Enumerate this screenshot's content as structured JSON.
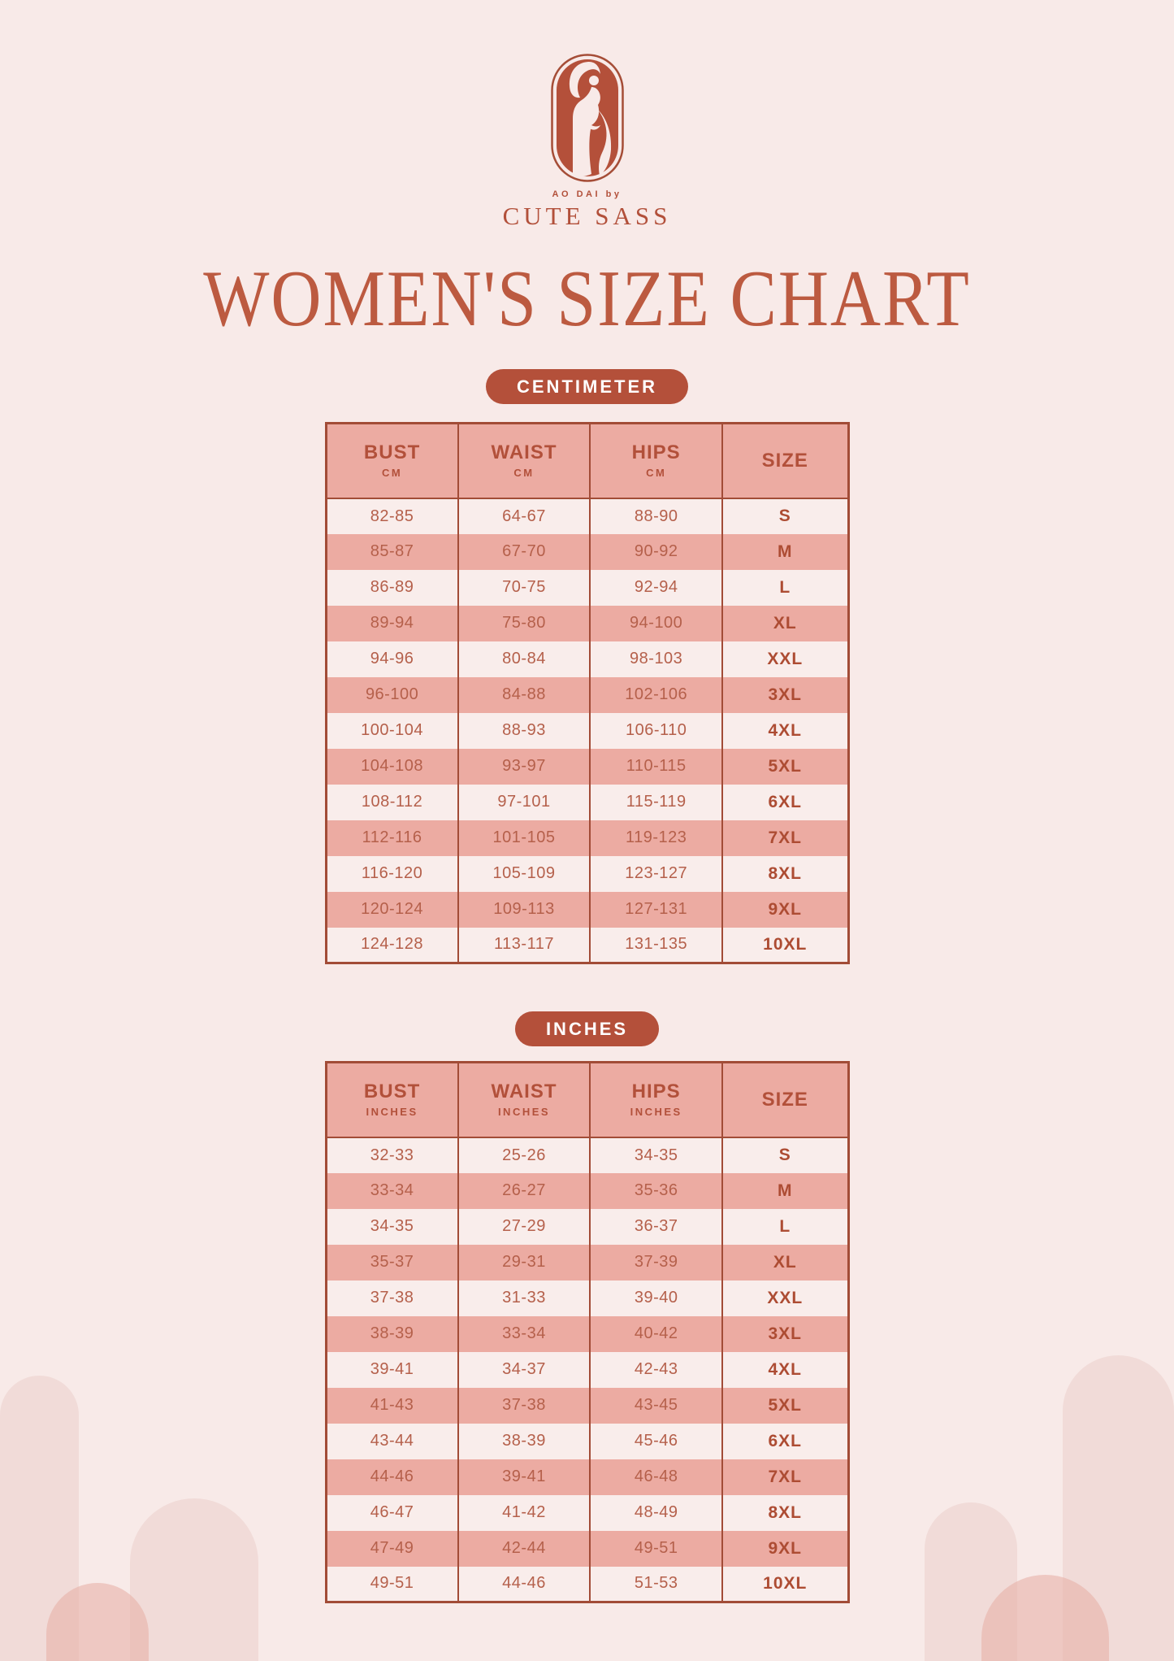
{
  "brand": {
    "tagline": "AO DAI by",
    "name": "CUTE SASS",
    "logo_icon": "ao-dai-woman-logo"
  },
  "title": "WOMEN'S SIZE CHART",
  "tables": [
    {
      "badge": "CENTIMETER",
      "columns": [
        {
          "label": "BUST",
          "sub": "CM"
        },
        {
          "label": "WAIST",
          "sub": "CM"
        },
        {
          "label": "HIPS",
          "sub": "CM"
        },
        {
          "label": "SIZE",
          "sub": ""
        }
      ],
      "rows": [
        [
          "82-85",
          "64-67",
          "88-90",
          "S"
        ],
        [
          "85-87",
          "67-70",
          "90-92",
          "M"
        ],
        [
          "86-89",
          "70-75",
          "92-94",
          "L"
        ],
        [
          "89-94",
          "75-80",
          "94-100",
          "XL"
        ],
        [
          "94-96",
          "80-84",
          "98-103",
          "XXL"
        ],
        [
          "96-100",
          "84-88",
          "102-106",
          "3XL"
        ],
        [
          "100-104",
          "88-93",
          "106-110",
          "4XL"
        ],
        [
          "104-108",
          "93-97",
          "110-115",
          "5XL"
        ],
        [
          "108-112",
          "97-101",
          "115-119",
          "6XL"
        ],
        [
          "112-116",
          "101-105",
          "119-123",
          "7XL"
        ],
        [
          "116-120",
          "105-109",
          "123-127",
          "8XL"
        ],
        [
          "120-124",
          "109-113",
          "127-131",
          "9XL"
        ],
        [
          "124-128",
          "113-117",
          "131-135",
          "10XL"
        ]
      ]
    },
    {
      "badge": "INCHES",
      "columns": [
        {
          "label": "BUST",
          "sub": "INCHES"
        },
        {
          "label": "WAIST",
          "sub": "INCHES"
        },
        {
          "label": "HIPS",
          "sub": "INCHES"
        },
        {
          "label": "SIZE",
          "sub": ""
        }
      ],
      "rows": [
        [
          "32-33",
          "25-26",
          "34-35",
          "S"
        ],
        [
          "33-34",
          "26-27",
          "35-36",
          "M"
        ],
        [
          "34-35",
          "27-29",
          "36-37",
          "L"
        ],
        [
          "35-37",
          "29-31",
          "37-39",
          "XL"
        ],
        [
          "37-38",
          "31-33",
          "39-40",
          "XXL"
        ],
        [
          "38-39",
          "33-34",
          "40-42",
          "3XL"
        ],
        [
          "39-41",
          "34-37",
          "42-43",
          "4XL"
        ],
        [
          "41-43",
          "37-38",
          "43-45",
          "5XL"
        ],
        [
          "43-44",
          "38-39",
          "45-46",
          "6XL"
        ],
        [
          "44-46",
          "39-41",
          "46-48",
          "7XL"
        ],
        [
          "46-47",
          "41-42",
          "48-49",
          "8XL"
        ],
        [
          "47-49",
          "42-44",
          "49-51",
          "9XL"
        ],
        [
          "49-51",
          "44-46",
          "51-53",
          "10XL"
        ]
      ]
    }
  ],
  "colors": {
    "background": "#f8eae8",
    "accent": "#b4503a",
    "table_border": "#a24c37",
    "row_dark": "#ecaba2",
    "row_light": "#f9edeb",
    "title_text": "#bc5a40",
    "value_text": "#b5604b",
    "size_text": "#ad4c33",
    "header_text": "#b2503a",
    "badge_text": "#ffffff"
  }
}
